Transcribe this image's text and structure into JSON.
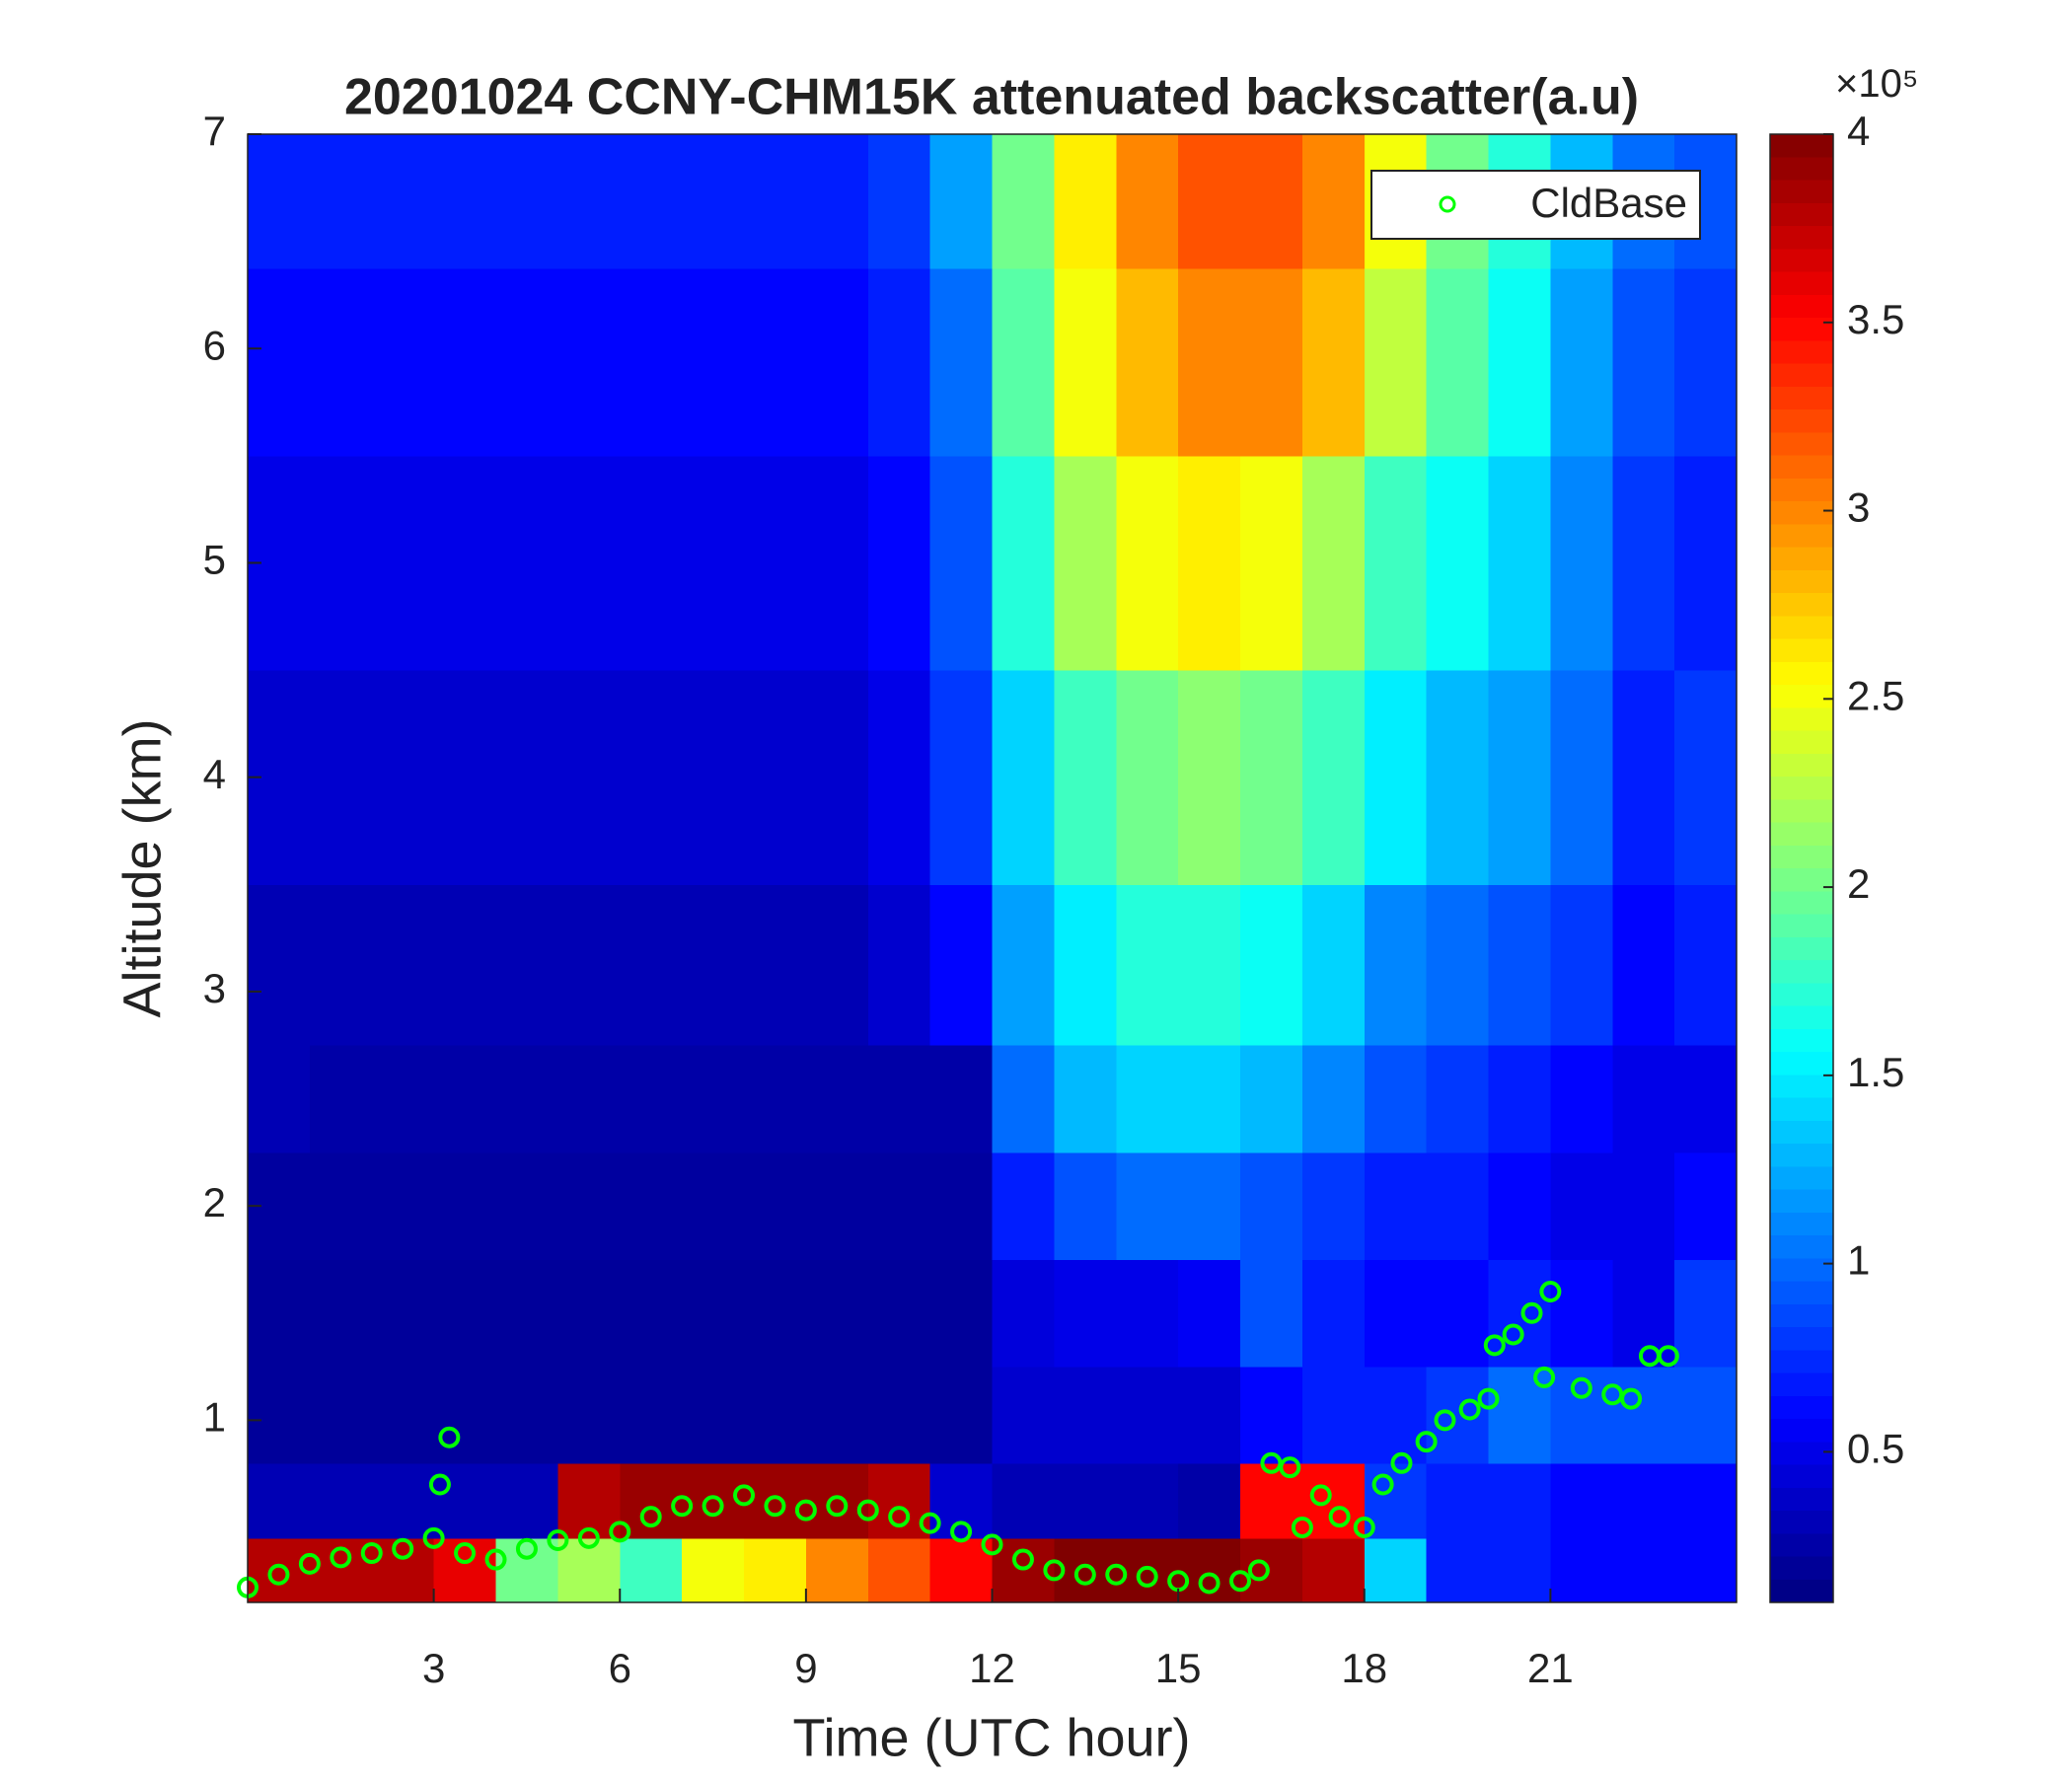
{
  "chart_data": {
    "type": "heatmap",
    "title": "20201024 CCNY-CHM15K attenuated backscatter(a.u)",
    "xlabel": "Time (UTC hour)",
    "ylabel": "Altitude (km)",
    "colormap": "jet",
    "xlim": [
      0,
      24
    ],
    "xticks": [
      3,
      6,
      9,
      12,
      15,
      18,
      21
    ],
    "ylim": [
      0.15,
      7
    ],
    "yticks": [
      1,
      2,
      3,
      4,
      5,
      6,
      7
    ],
    "clim": [
      0.1,
      4
    ],
    "cticks": [
      0.5,
      1,
      1.5,
      2,
      2.5,
      3,
      3.5,
      4
    ],
    "colorbar_multiplier": "×10⁵",
    "legend": "upper right",
    "x": [
      0.5,
      1.5,
      2.5,
      3.5,
      4.5,
      5.5,
      6.5,
      7.5,
      8.5,
      9.5,
      10.5,
      11.5,
      12.5,
      13.5,
      14.5,
      15.5,
      16.5,
      17.5,
      18.5,
      19.5,
      20.5,
      21.5,
      22.5,
      23.5
    ],
    "y": [
      0.3,
      0.6,
      1,
      1.5,
      2,
      2.5,
      3,
      4,
      5,
      6,
      6.75
    ],
    "z": [
      [
        3.8,
        3.8,
        3.8,
        3.6,
        2.0,
        2.2,
        1.8,
        2.5,
        2.6,
        3.0,
        3.2,
        3.5,
        3.9,
        4,
        4,
        4,
        3.9,
        3.8,
        1.4,
        0.7,
        0.7,
        0.6,
        0.6,
        0.6
      ],
      [
        0.3,
        0.3,
        0.3,
        0.3,
        0.3,
        3.8,
        3.9,
        3.9,
        3.9,
        3.9,
        3.8,
        0.4,
        0.3,
        0.3,
        0.3,
        0.25,
        3.5,
        3.5,
        0.8,
        0.7,
        0.7,
        0.6,
        0.6,
        0.6
      ],
      [
        0.2,
        0.2,
        0.2,
        0.2,
        0.2,
        0.2,
        0.2,
        0.2,
        0.2,
        0.2,
        0.2,
        0.2,
        0.4,
        0.4,
        0.4,
        0.4,
        0.6,
        0.7,
        0.7,
        0.8,
        1.0,
        0.9,
        0.9,
        0.9
      ],
      [
        0.2,
        0.2,
        0.2,
        0.2,
        0.2,
        0.2,
        0.2,
        0.2,
        0.2,
        0.2,
        0.2,
        0.2,
        0.45,
        0.5,
        0.5,
        0.55,
        0.9,
        0.7,
        0.6,
        0.6,
        0.7,
        0.6,
        0.5,
        0.8
      ],
      [
        0.22,
        0.22,
        0.22,
        0.22,
        0.22,
        0.22,
        0.22,
        0.22,
        0.22,
        0.22,
        0.22,
        0.22,
        0.7,
        0.9,
        1.0,
        1.0,
        0.9,
        0.8,
        0.7,
        0.7,
        0.6,
        0.5,
        0.5,
        0.6
      ],
      [
        0.3,
        0.25,
        0.25,
        0.25,
        0.25,
        0.25,
        0.25,
        0.25,
        0.25,
        0.25,
        0.25,
        0.25,
        1.0,
        1.3,
        1.4,
        1.4,
        1.3,
        1.1,
        0.9,
        0.8,
        0.7,
        0.6,
        0.5,
        0.5
      ],
      [
        0.3,
        0.3,
        0.3,
        0.3,
        0.3,
        0.3,
        0.3,
        0.3,
        0.3,
        0.3,
        0.4,
        0.6,
        1.2,
        1.5,
        1.7,
        1.7,
        1.6,
        1.4,
        1.1,
        1.0,
        0.9,
        0.8,
        0.6,
        0.7
      ],
      [
        0.4,
        0.4,
        0.4,
        0.4,
        0.4,
        0.4,
        0.4,
        0.4,
        0.4,
        0.4,
        0.5,
        0.8,
        1.4,
        1.8,
        2.0,
        2.1,
        2.0,
        1.8,
        1.5,
        1.3,
        1.2,
        1.0,
        0.7,
        0.8
      ],
      [
        0.5,
        0.5,
        0.5,
        0.5,
        0.5,
        0.5,
        0.5,
        0.5,
        0.5,
        0.5,
        0.6,
        0.9,
        1.7,
        2.2,
        2.5,
        2.6,
        2.5,
        2.2,
        1.8,
        1.6,
        1.4,
        1.1,
        0.8,
        0.7
      ],
      [
        0.6,
        0.6,
        0.6,
        0.6,
        0.6,
        0.6,
        0.6,
        0.6,
        0.6,
        0.6,
        0.7,
        1.0,
        1.9,
        2.5,
        2.8,
        3.0,
        3.0,
        2.8,
        2.3,
        1.9,
        1.6,
        1.2,
        0.9,
        0.8
      ],
      [
        0.7,
        0.7,
        0.7,
        0.7,
        0.7,
        0.7,
        0.7,
        0.7,
        0.7,
        0.7,
        0.8,
        1.2,
        2.0,
        2.6,
        3.0,
        3.2,
        3.2,
        3.0,
        2.5,
        2.0,
        1.7,
        1.3,
        1.0,
        0.9
      ]
    ],
    "series": [
      {
        "name": "CldBase",
        "color": "#00ff00",
        "x": [
          0,
          0.5,
          1,
          1.5,
          2,
          2.5,
          3,
          3.1,
          3.25,
          3.5,
          4,
          4.5,
          5,
          5.5,
          6,
          6.5,
          7,
          7.5,
          8,
          8.5,
          9,
          9.5,
          10,
          10.5,
          11,
          11.5,
          12,
          12.5,
          13,
          13.5,
          14,
          14.5,
          15,
          15.5,
          16,
          16.3,
          16.5,
          16.8,
          17,
          17.3,
          17.6,
          18,
          18.3,
          18.6,
          19,
          19.3,
          19.7,
          20,
          20.1,
          20.4,
          20.7,
          20.9,
          21,
          21.5,
          22,
          22.3,
          22.6,
          22.9
        ],
        "values": [
          0.22,
          0.28,
          0.33,
          0.36,
          0.38,
          0.4,
          0.45,
          0.7,
          0.92,
          0.38,
          0.35,
          0.4,
          0.44,
          0.45,
          0.48,
          0.55,
          0.6,
          0.6,
          0.65,
          0.6,
          0.58,
          0.6,
          0.58,
          0.55,
          0.52,
          0.48,
          0.42,
          0.35,
          0.3,
          0.28,
          0.28,
          0.27,
          0.25,
          0.24,
          0.25,
          0.3,
          0.8,
          0.78,
          0.5,
          0.65,
          0.55,
          0.5,
          0.7,
          0.8,
          0.9,
          1.0,
          1.05,
          1.1,
          1.35,
          1.4,
          1.5,
          1.2,
          1.6,
          1.15,
          1.12,
          1.1,
          1.3,
          1.3
        ]
      }
    ]
  }
}
